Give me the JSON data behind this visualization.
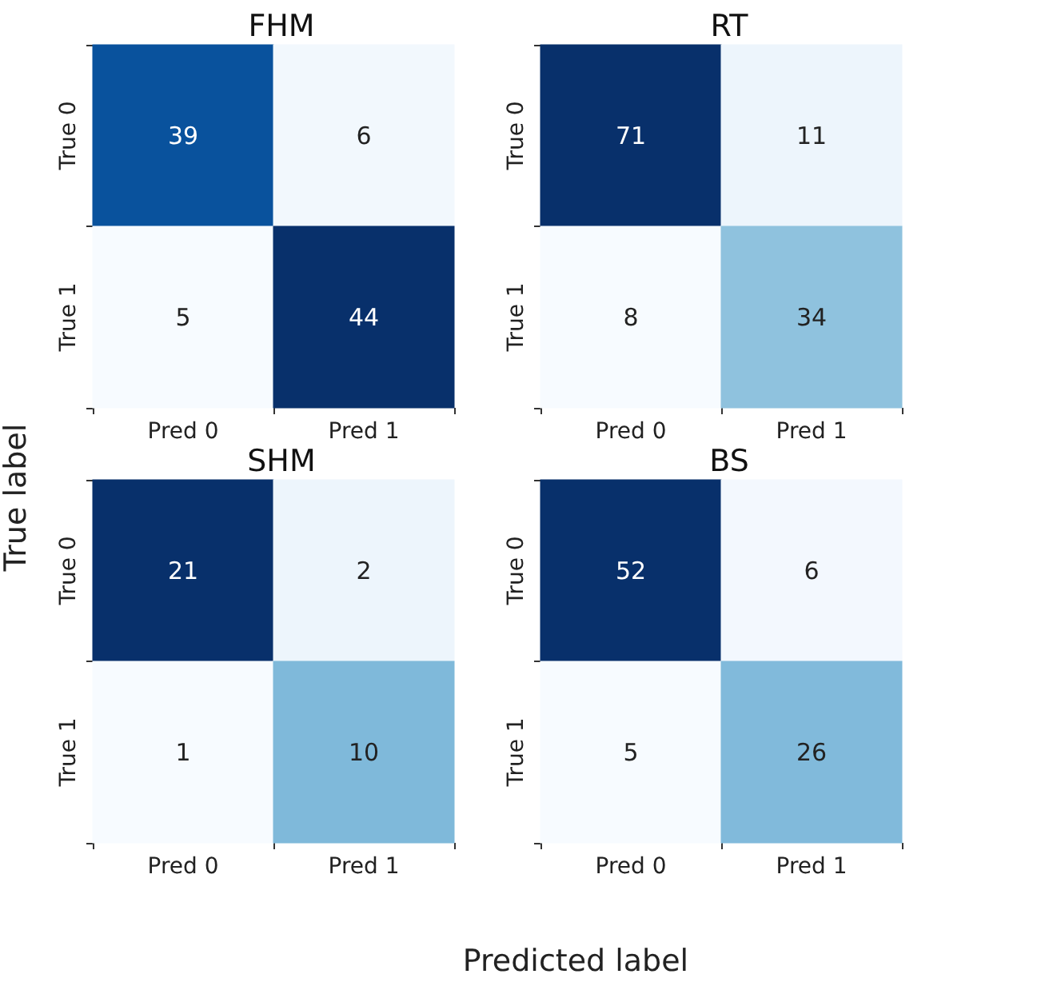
{
  "chart_data": [
    {
      "type": "heatmap",
      "data_labels": true,
      "title": "FHM",
      "ylabel": "True label",
      "categories": [
        "Pred 0",
        "Pred 1"
      ],
      "y_categories": [
        "True 0",
        "True 1"
      ],
      "cells": [
        [
          39,
          6
        ],
        [
          5,
          44
        ]
      ]
    },
    {
      "type": "heatmap",
      "data_labels": true,
      "title": "RT",
      "categories": [
        "Pred 0",
        "Pred 1"
      ],
      "y_categories": [
        "True 0",
        "True 1"
      ],
      "cells": [
        [
          71,
          11
        ],
        [
          8,
          34
        ]
      ]
    },
    {
      "type": "heatmap",
      "data_labels": true,
      "title": "SHM",
      "categories": [
        "Pred 0",
        "Pred 1"
      ],
      "y_categories": [
        "True 0",
        "True 1"
      ],
      "cells": [
        [
          21,
          2
        ],
        [
          1,
          10
        ]
      ]
    },
    {
      "type": "heatmap",
      "data_labels": true,
      "title": "BS",
      "xlabel": "Predicted label",
      "categories": [
        "Pred 0",
        "Pred 1"
      ],
      "y_categories": [
        "True 0",
        "True 1"
      ],
      "cells": [
        [
          52,
          6
        ],
        [
          5,
          26
        ]
      ]
    }
  ]
}
